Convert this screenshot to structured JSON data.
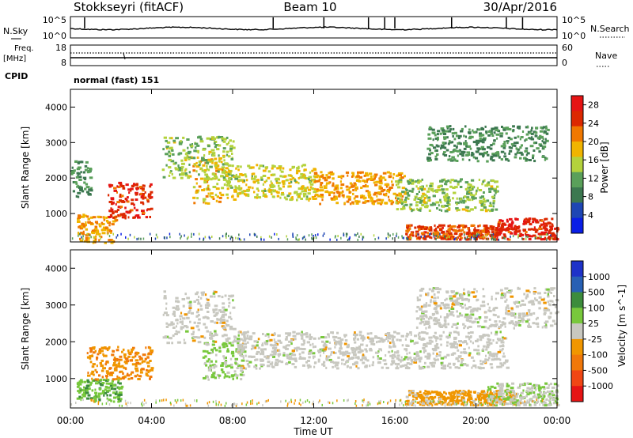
{
  "header": {
    "station": "Stokkseyri (fitACF)",
    "beam": "Beam 10",
    "date": "30/Apr/2016"
  },
  "top_panels": {
    "nsky_label": "N.Sky",
    "nsearch_label": "N.Search",
    "n_ticks": [
      "10^5",
      "10^0"
    ],
    "freq_label_1": "Freq.",
    "freq_label_2": "[MHz]",
    "freq_ticks": [
      "18",
      "8"
    ],
    "nave_label": "Nave",
    "nave_ticks": [
      "60",
      "0"
    ],
    "cpid_label": "CPID",
    "cpid_value": "normal (fast) 151"
  },
  "x_axis": {
    "label": "Time UT",
    "ticks": [
      "00:00",
      "04:00",
      "08:00",
      "12:00",
      "16:00",
      "20:00",
      "00:00"
    ]
  },
  "colors": {
    "power_scale": [
      "#0a1ee6",
      "#1e46b4",
      "#3c7850",
      "#5aa05a",
      "#b4d23c",
      "#f0b400",
      "#f07800",
      "#dc2800",
      "#e61414"
    ],
    "velocity_scale": [
      "#1e32c8",
      "#2860b4",
      "#3c8c3c",
      "#78c83c",
      "#c8c8c0",
      "#f09600",
      "#f0780a",
      "#f04614",
      "#e61414"
    ]
  },
  "chart_data": [
    {
      "type": "heatmap",
      "title": "Power",
      "xlabel": "Time UT",
      "ylabel": "Slant Range [km]",
      "x_ticks": [
        "00:00",
        "04:00",
        "08:00",
        "12:00",
        "16:00",
        "20:00",
        "00:00"
      ],
      "y_ticks": [
        1000,
        2000,
        3000,
        4000
      ],
      "xlim": [
        0,
        24
      ],
      "ylim": [
        200,
        4500
      ],
      "colorbar": {
        "label": "Power [dB]",
        "ticks": [
          4,
          8,
          12,
          16,
          20,
          24,
          28
        ],
        "range": [
          0,
          30
        ]
      },
      "regions": [
        {
          "t": [
            0.3,
            2.2
          ],
          "r": [
            200,
            1000
          ],
          "v": 20
        },
        {
          "t": [
            1.8,
            4.0
          ],
          "r": [
            900,
            1900
          ],
          "v": 26
        },
        {
          "t": [
            0.0,
            1.0
          ],
          "r": [
            1500,
            2500
          ],
          "v": 10
        },
        {
          "t": [
            6.0,
            7.5
          ],
          "r": [
            1300,
            2600
          ],
          "v": 18
        },
        {
          "t": [
            4.5,
            8.0
          ],
          "r": [
            2000,
            3200
          ],
          "v": 14
        },
        {
          "t": [
            7.5,
            12.0
          ],
          "r": [
            1400,
            2400
          ],
          "v": 16
        },
        {
          "t": [
            12.0,
            16.5
          ],
          "r": [
            1300,
            2200
          ],
          "v": 20
        },
        {
          "t": [
            16.0,
            21.0
          ],
          "r": [
            1100,
            2000
          ],
          "v": 14
        },
        {
          "t": [
            17.5,
            23.5
          ],
          "r": [
            2500,
            3500
          ],
          "v": 10
        },
        {
          "t": [
            16.5,
            21.0
          ],
          "r": [
            300,
            700
          ],
          "v": 24
        },
        {
          "t": [
            21.0,
            24.0
          ],
          "r": [
            300,
            900
          ],
          "v": 26
        }
      ]
    },
    {
      "type": "heatmap",
      "title": "Velocity",
      "xlabel": "Time UT",
      "ylabel": "Slant Range [km]",
      "x_ticks": [
        "00:00",
        "04:00",
        "08:00",
        "12:00",
        "16:00",
        "20:00",
        "00:00"
      ],
      "y_ticks": [
        1000,
        2000,
        3000,
        4000
      ],
      "xlim": [
        0,
        24
      ],
      "ylim": [
        200,
        4500
      ],
      "colorbar": {
        "label": "Velocity [m s^-1]",
        "ticks": [
          1000,
          500,
          100,
          25,
          -25,
          -100,
          -500,
          -1000
        ],
        "range": [
          -1000,
          1000
        ]
      },
      "regions": [
        {
          "t": [
            0.3,
            2.5
          ],
          "r": [
            400,
            1000
          ],
          "v": 300
        },
        {
          "t": [
            0.8,
            4.0
          ],
          "r": [
            1000,
            1900
          ],
          "v": -300
        },
        {
          "t": [
            4.5,
            8.0
          ],
          "r": [
            2000,
            3400
          ],
          "v": 0
        },
        {
          "t": [
            6.5,
            8.5
          ],
          "r": [
            1000,
            2000
          ],
          "v": 150
        },
        {
          "t": [
            8.0,
            21.5
          ],
          "r": [
            1300,
            2300
          ],
          "v": 0
        },
        {
          "t": [
            17.0,
            24.0
          ],
          "r": [
            2400,
            3500
          ],
          "v": 0
        },
        {
          "t": [
            16.5,
            22.0
          ],
          "r": [
            300,
            700
          ],
          "v": -200
        },
        {
          "t": [
            20.5,
            24.0
          ],
          "r": [
            300,
            900
          ],
          "v": 80
        }
      ]
    }
  ]
}
